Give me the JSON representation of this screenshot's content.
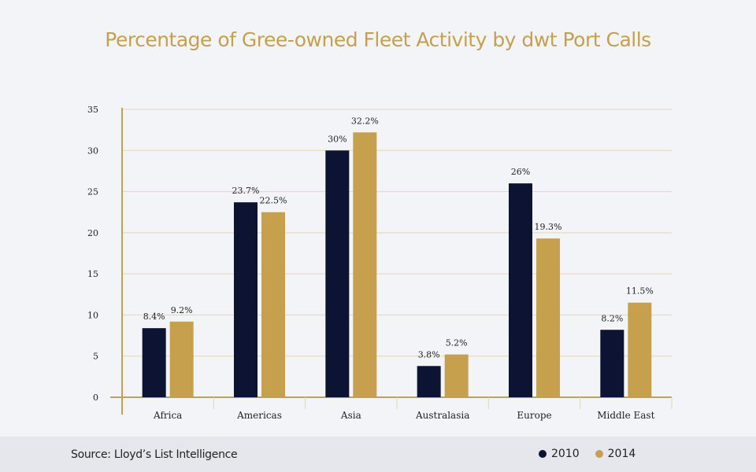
{
  "source": "Source: Lloyd’s List Intelligence",
  "colors": {
    "s2010": "#0d1433",
    "s2014": "#c6a04d",
    "grid": "#e5d7b3",
    "axis": "#c6a04d"
  },
  "chart_data": {
    "type": "bar",
    "title": "Percentage of Gree-owned Fleet Activity by dwt Port Calls",
    "categories": [
      "Africa",
      "Americas",
      "Asia",
      "Australasia",
      "Europe",
      "Middle East"
    ],
    "series": [
      {
        "name": "2010",
        "values": [
          8.4,
          23.7,
          30,
          3.8,
          26,
          8.2
        ],
        "labels": [
          "8.4%",
          "23.7%",
          "30%",
          "3.8%",
          "26%",
          "8.2%"
        ]
      },
      {
        "name": "2014",
        "values": [
          9.2,
          22.5,
          32.2,
          5.2,
          19.3,
          11.5
        ],
        "labels": [
          "9.2%",
          "22.5%",
          "32.2%",
          "5.2%",
          "19.3%",
          "11.5%"
        ]
      }
    ],
    "ylim": [
      0,
      35
    ],
    "yticks": [
      "0",
      "5",
      "10",
      "15",
      "20",
      "25",
      "30",
      "35"
    ],
    "grid": true,
    "legend": "bottom-right"
  }
}
